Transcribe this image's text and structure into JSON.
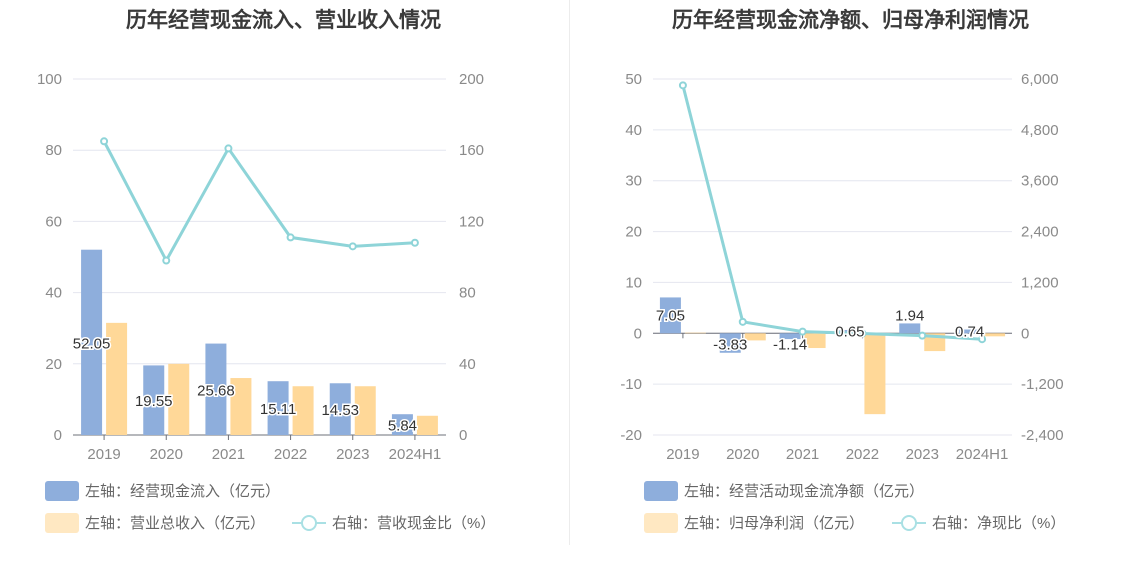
{
  "chart_data": [
    {
      "type": "bar",
      "title": "历年经营现金流入、营业收入情况",
      "categories": [
        "2019",
        "2020",
        "2021",
        "2022",
        "2023",
        "2024H1"
      ],
      "y_left": {
        "min": 0,
        "max": 100,
        "ticks": [
          "0",
          "20",
          "40",
          "60",
          "80",
          "100"
        ]
      },
      "y_right": {
        "min": 0,
        "max": 200,
        "ticks": [
          "0",
          "40",
          "80",
          "120",
          "160",
          "200"
        ]
      },
      "grid": true,
      "legend_position": "bottom-left",
      "series": [
        {
          "name": "左轴：经营现金流入（亿元）",
          "kind": "bar",
          "axis": "left",
          "color": "#8eaedc",
          "values": [
            52.05,
            19.55,
            25.68,
            15.11,
            14.53,
            5.84
          ],
          "labels": [
            "52.05",
            "19.55",
            "25.68",
            "15.11",
            "14.53",
            "5.84"
          ]
        },
        {
          "name": "左轴：营业总收入（亿元）",
          "kind": "bar",
          "axis": "left",
          "color": "#ffd898",
          "values": [
            31.5,
            20.0,
            16.0,
            13.7,
            13.7,
            5.4
          ]
        },
        {
          "name": "右轴：营收现金比（%）",
          "kind": "line",
          "axis": "right",
          "color": "#8ed4d8",
          "values": [
            165.0,
            98.0,
            161.0,
            111.0,
            106.0,
            108.0
          ]
        }
      ]
    },
    {
      "type": "bar",
      "title": "历年经营现金流净额、归母净利润情况",
      "categories": [
        "2019",
        "2020",
        "2021",
        "2022",
        "2023",
        "2024H1"
      ],
      "y_left": {
        "min": -20,
        "max": 50,
        "ticks": [
          "-20",
          "-10",
          "0",
          "10",
          "20",
          "30",
          "40",
          "50"
        ]
      },
      "y_right": {
        "min": -2400,
        "max": 6000,
        "ticks": [
          "-2,400",
          "-1,200",
          "0",
          "1,200",
          "2,400",
          "3,600",
          "4,800",
          "6,000"
        ]
      },
      "grid": true,
      "legend_position": "bottom-left",
      "series": [
        {
          "name": "左轴：经营活动现金流净额（亿元）",
          "kind": "bar",
          "axis": "left",
          "color": "#8eaedc",
          "values": [
            7.05,
            -3.83,
            -1.14,
            0.65,
            1.94,
            0.74
          ],
          "labels": [
            "7.05",
            "-3.83",
            "-1.14",
            "0.65",
            "1.94",
            "0.74"
          ]
        },
        {
          "name": "左轴：归母净利润（亿元）",
          "kind": "bar",
          "axis": "left",
          "color": "#ffd898",
          "values": [
            0.12,
            -1.4,
            -2.9,
            -15.9,
            -3.5,
            -0.6
          ]
        },
        {
          "name": "右轴：净现比（%）",
          "kind": "line",
          "axis": "right",
          "color": "#8ed4d8",
          "values": [
            5850,
            270,
            40,
            -5,
            -55,
            -140
          ]
        }
      ]
    }
  ]
}
